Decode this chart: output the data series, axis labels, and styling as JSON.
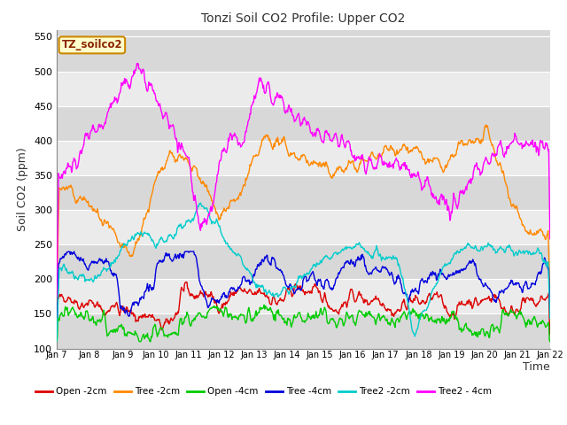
{
  "title": "Tonzi Soil CO2 Profile: Upper CO2",
  "xlabel": "Time",
  "ylabel": "Soil CO2 (ppm)",
  "legend_label": "TZ_soilco2",
  "ylim": [
    100,
    560
  ],
  "yticks": [
    100,
    150,
    200,
    250,
    300,
    350,
    400,
    450,
    500,
    550
  ],
  "xlim": [
    0,
    15
  ],
  "xtick_labels": [
    "Jan 7",
    "Jan 8",
    "Jan 9",
    "Jan 10",
    "Jan 11",
    "Jan 12",
    "Jan 13",
    "Jan 14",
    "Jan 15",
    "Jan 16",
    "Jan 17",
    "Jan 18",
    "Jan 19",
    "Jan 20",
    "Jan 21",
    "Jan 22"
  ],
  "series_colors": {
    "Open -2cm": "#dd0000",
    "Tree -2cm": "#ff8800",
    "Open -4cm": "#00cc00",
    "Tree -4cm": "#0000dd",
    "Tree2 -2cm": "#00cccc",
    "Tree2 - 4cm": "#ff00ff"
  },
  "band_colors": [
    "#d8d8d8",
    "#ebebeb"
  ],
  "background_color": "#ffffff",
  "grid_line_color": "#ffffff"
}
